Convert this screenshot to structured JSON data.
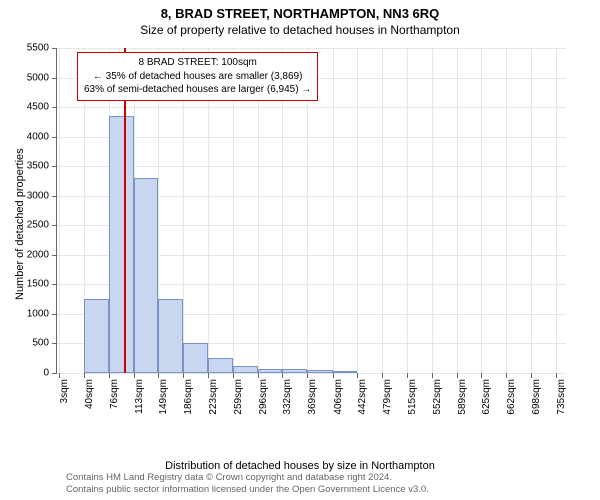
{
  "title": "8, BRAD STREET, NORTHAMPTON, NN3 6RQ",
  "subtitle": "Size of property relative to detached houses in Northampton",
  "yaxis_label": "Number of detached properties",
  "xaxis_label": "Distribution of detached houses by size in Northampton",
  "chart": {
    "type": "histogram",
    "background_color": "#ffffff",
    "grid_color": "#e6e6e6",
    "bar_fill": "#c9d6ef",
    "bar_border": "#7a93c7",
    "marker_color": "#cc0000",
    "annot_border": "#cc0000",
    "ylim": [
      0,
      5500
    ],
    "yticks": [
      0,
      500,
      1000,
      1500,
      2000,
      2500,
      3000,
      3500,
      4000,
      4500,
      5000,
      5500
    ],
    "xlim": [
      0,
      750
    ],
    "xticks": [
      3,
      40,
      76,
      113,
      149,
      186,
      223,
      259,
      296,
      332,
      369,
      406,
      442,
      479,
      515,
      552,
      589,
      625,
      662,
      698,
      735
    ],
    "xtick_suffix": "sqm",
    "bars": [
      {
        "x0": 3,
        "x1": 40,
        "y": 0
      },
      {
        "x0": 40,
        "x1": 76,
        "y": 1250
      },
      {
        "x0": 76,
        "x1": 113,
        "y": 4350
      },
      {
        "x0": 113,
        "x1": 149,
        "y": 3300
      },
      {
        "x0": 149,
        "x1": 186,
        "y": 1250
      },
      {
        "x0": 186,
        "x1": 223,
        "y": 500
      },
      {
        "x0": 223,
        "x1": 259,
        "y": 250
      },
      {
        "x0": 259,
        "x1": 296,
        "y": 120
      },
      {
        "x0": 296,
        "x1": 332,
        "y": 70
      },
      {
        "x0": 332,
        "x1": 369,
        "y": 60
      },
      {
        "x0": 369,
        "x1": 406,
        "y": 50
      },
      {
        "x0": 406,
        "x1": 442,
        "y": 20
      },
      {
        "x0": 442,
        "x1": 479,
        "y": 0
      },
      {
        "x0": 479,
        "x1": 515,
        "y": 0
      },
      {
        "x0": 515,
        "x1": 552,
        "y": 0
      },
      {
        "x0": 552,
        "x1": 589,
        "y": 0
      },
      {
        "x0": 589,
        "x1": 625,
        "y": 0
      },
      {
        "x0": 625,
        "x1": 662,
        "y": 0
      },
      {
        "x0": 662,
        "x1": 698,
        "y": 0
      },
      {
        "x0": 698,
        "x1": 735,
        "y": 0
      }
    ],
    "marker_x": 100,
    "annotation": {
      "line1": "8 BRAD STREET: 100sqm",
      "line2": "← 35% of detached houses are smaller (3,869)",
      "line3": "63% of semi-detached houses are larger (6,945) →"
    },
    "tick_fontsize": 10,
    "label_fontsize": 11,
    "title_fontsize": 13
  },
  "footnote_line1": "Contains HM Land Registry data © Crown copyright and database right 2024.",
  "footnote_line2": "Contains public sector information licensed under the Open Government Licence v3.0."
}
